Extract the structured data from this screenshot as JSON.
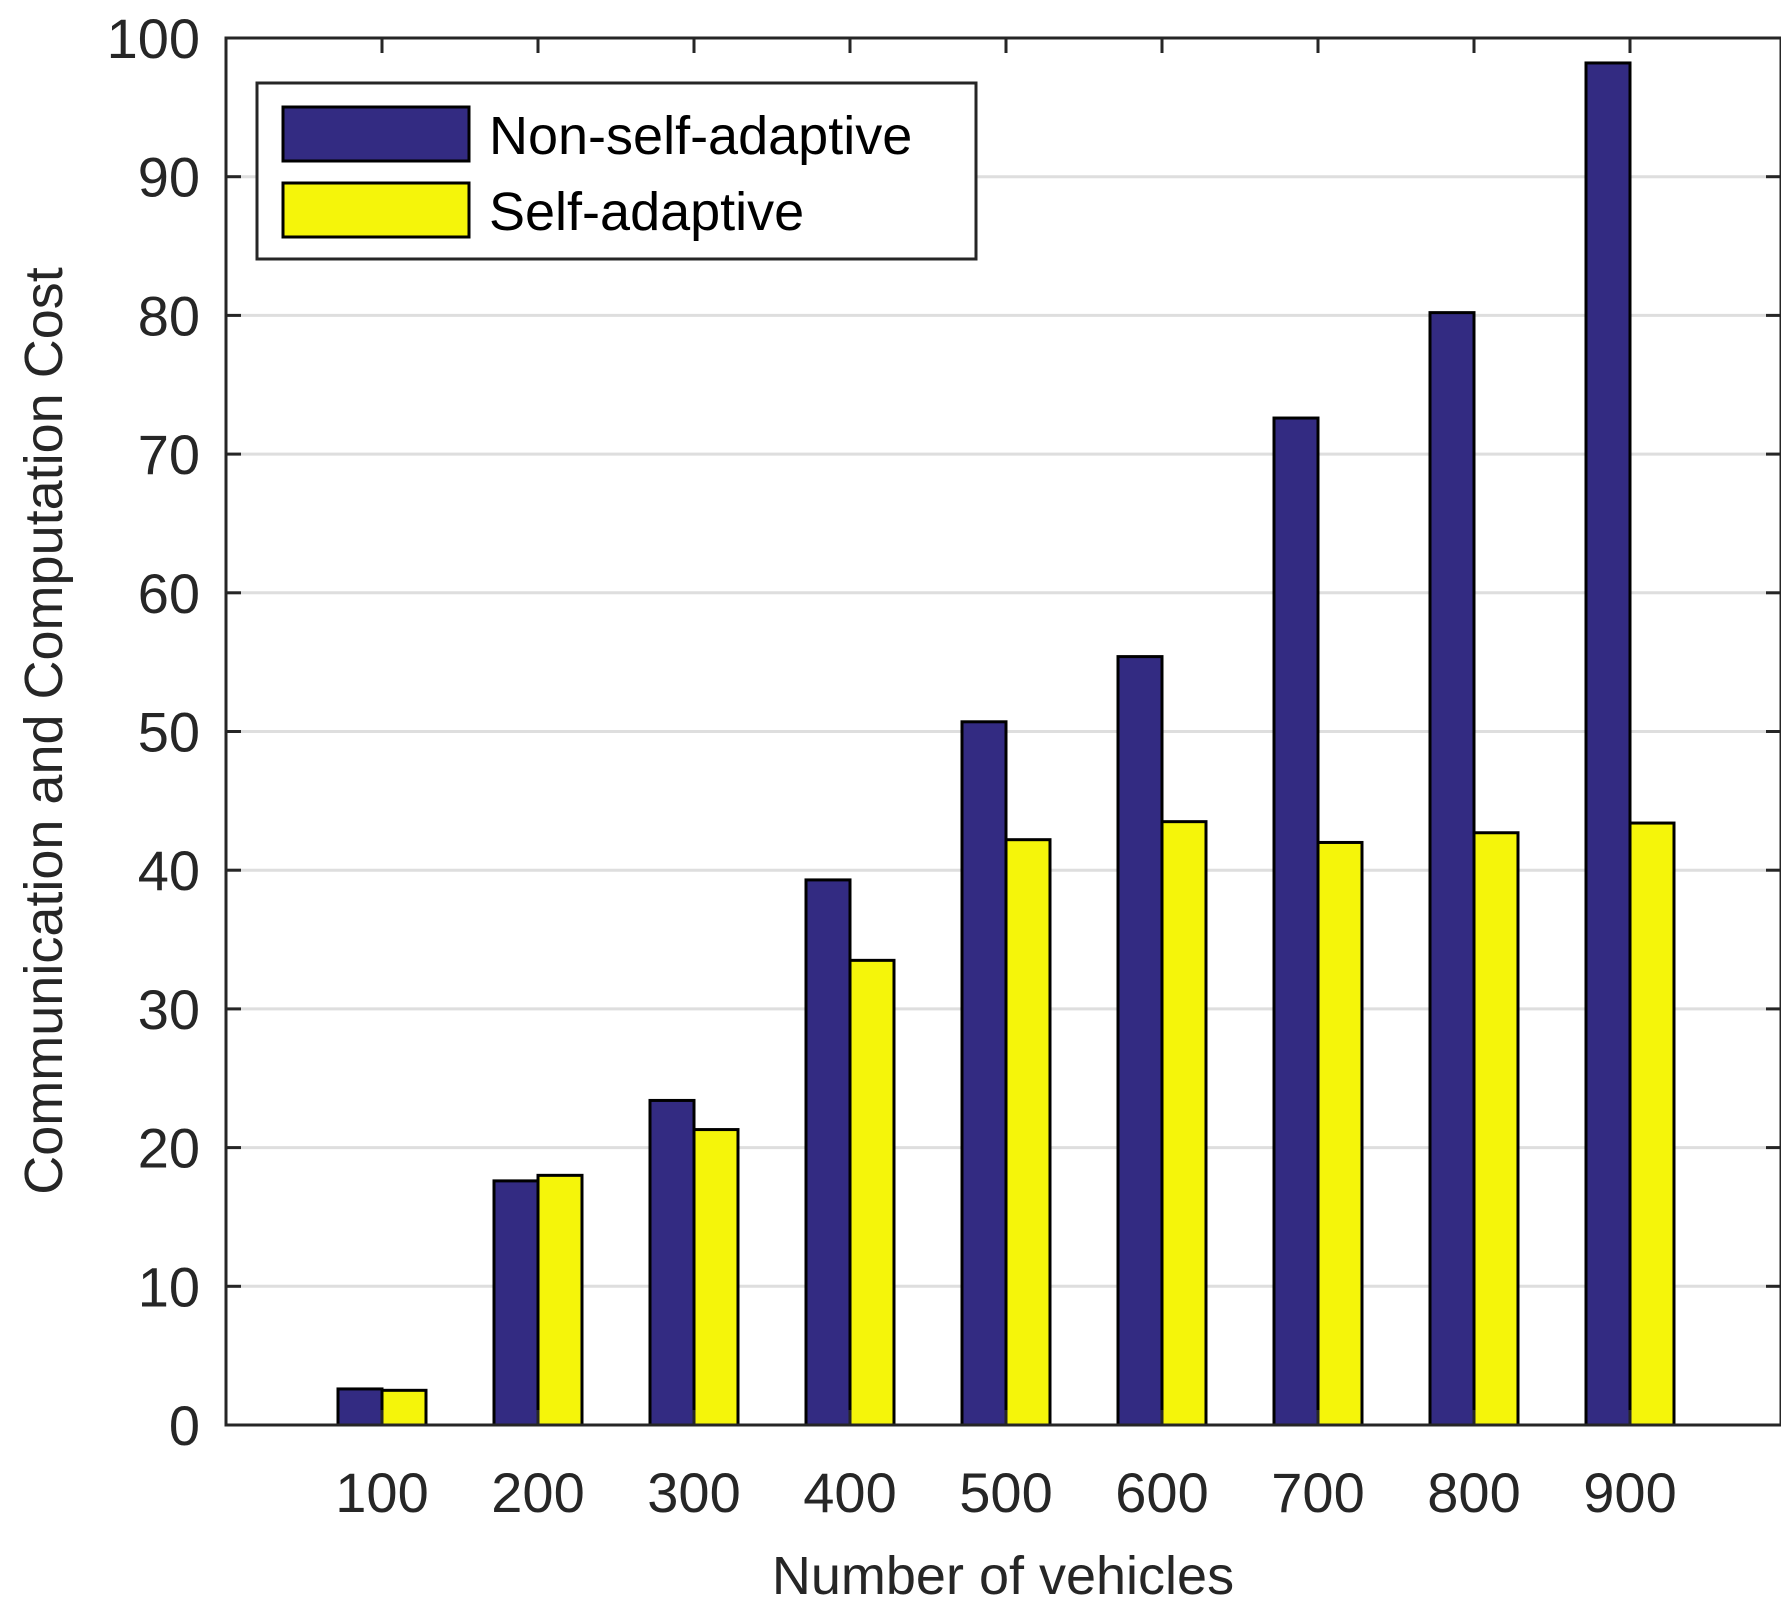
{
  "chart_data": {
    "type": "bar",
    "title": "",
    "xlabel": "Number of vehicles",
    "ylabel": "Communication and Computation Cost",
    "categories": [
      "100",
      "200",
      "300",
      "400",
      "500",
      "600",
      "700",
      "800",
      "900"
    ],
    "series": [
      {
        "name": "Non-self-adaptive",
        "color": "#332b82",
        "values": [
          2.6,
          17.6,
          23.4,
          39.3,
          50.7,
          55.4,
          72.6,
          80.2,
          98.2
        ]
      },
      {
        "name": "Self-adaptive",
        "color": "#f5f50a",
        "values": [
          2.5,
          18.0,
          21.3,
          33.5,
          42.2,
          43.5,
          42.0,
          42.7,
          43.4
        ]
      }
    ],
    "ylim": [
      0,
      100
    ],
    "yticks": [
      "0",
      "10",
      "20",
      "30",
      "40",
      "50",
      "60",
      "70",
      "80",
      "90",
      "100"
    ],
    "grid": "horizontal",
    "legend": "top-left"
  }
}
